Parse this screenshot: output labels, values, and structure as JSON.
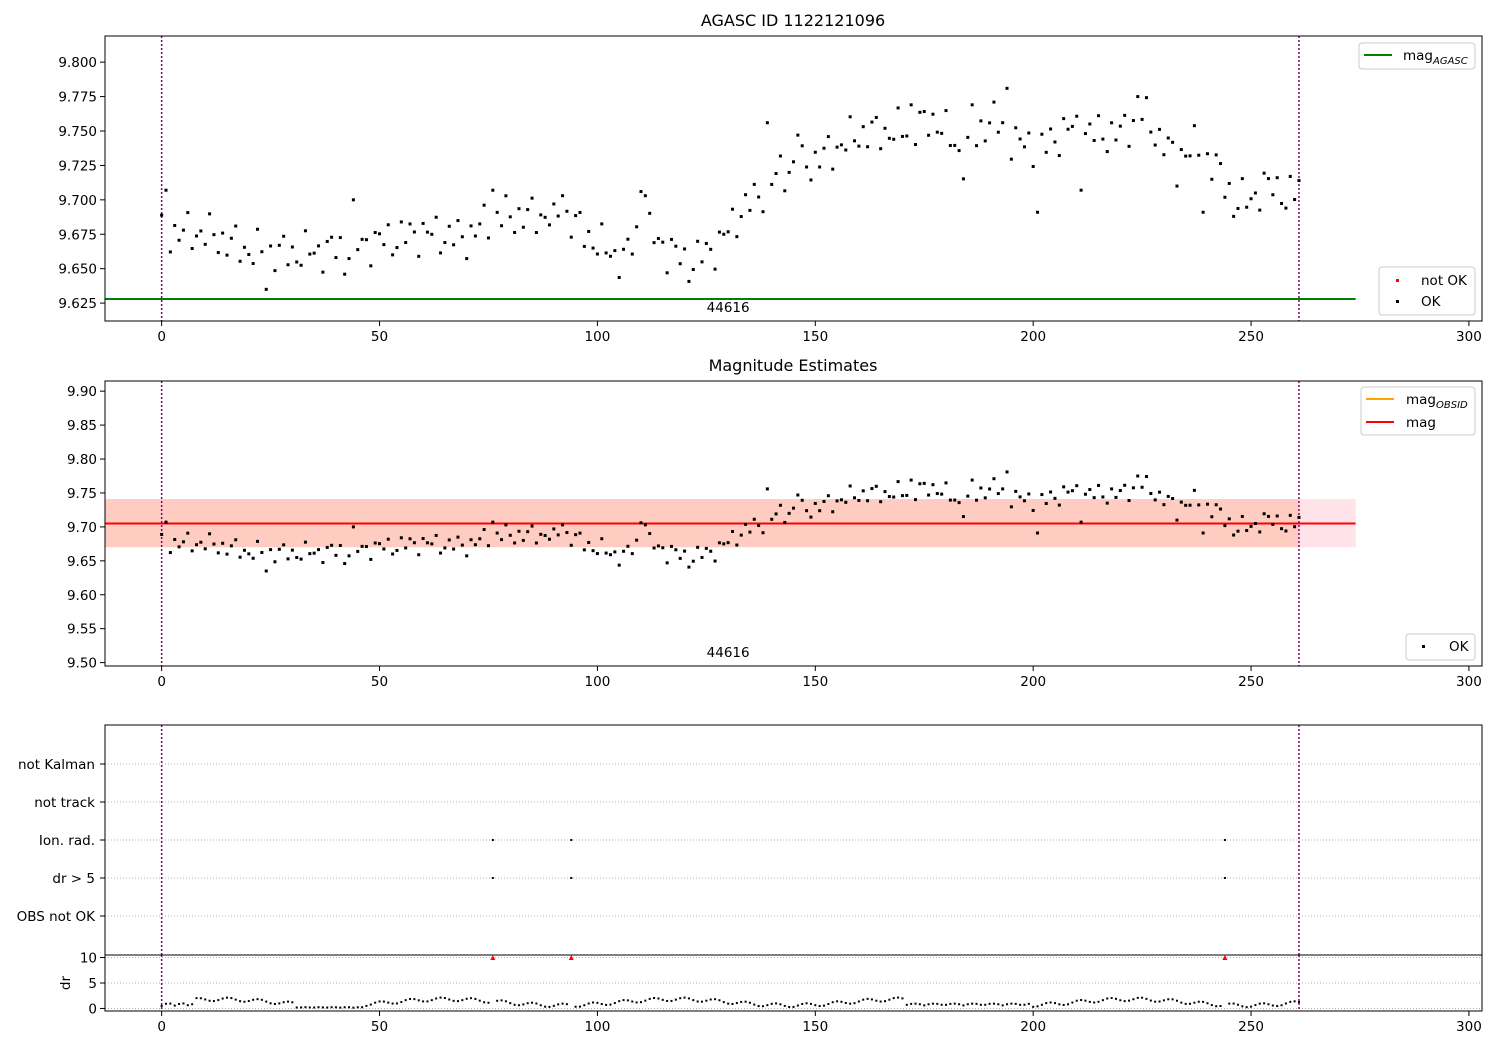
{
  "chart_data": [
    {
      "type": "scatter",
      "title": "AGASC ID 1122121096",
      "xlim": [
        -13,
        303
      ],
      "ylim": [
        9.612,
        9.819
      ],
      "x_ticks": [
        0,
        50,
        100,
        150,
        200,
        250,
        300
      ],
      "y_ticks": [
        9.625,
        9.65,
        9.675,
        9.7,
        9.725,
        9.75,
        9.775,
        9.8
      ],
      "x_tick_labels": [
        "0",
        "50",
        "100",
        "150",
        "200",
        "250",
        "300"
      ],
      "y_tick_labels": [
        "9.625",
        "9.650",
        "9.675",
        "9.700",
        "9.725",
        "9.750",
        "9.775",
        "9.800"
      ],
      "obsid_boundaries": [
        0,
        261
      ],
      "obsid_label": "44616",
      "obsid_label_x": 130,
      "mag_agasc": 9.628,
      "line_x_range": [
        -13,
        274
      ],
      "series_ok_name": "OK",
      "series_not_ok_name": "not OK",
      "legend_upper": {
        "base": "mag",
        "sub": "AGASC"
      },
      "legend_upper_position": "upper right",
      "legend_lower_position": "lower right",
      "grid": false
    },
    {
      "type": "scatter",
      "title": "Magnitude Estimates",
      "xlim": [
        -13,
        303
      ],
      "ylim": [
        9.495,
        9.915
      ],
      "x_ticks": [
        0,
        50,
        100,
        150,
        200,
        250,
        300
      ],
      "y_ticks": [
        9.5,
        9.55,
        9.6,
        9.65,
        9.7,
        9.75,
        9.8,
        9.85,
        9.9
      ],
      "x_tick_labels": [
        "0",
        "50",
        "100",
        "150",
        "200",
        "250",
        "300"
      ],
      "y_tick_labels": [
        "9.50",
        "9.55",
        "9.60",
        "9.65",
        "9.70",
        "9.75",
        "9.80",
        "9.85",
        "9.90"
      ],
      "obsid_boundaries": [
        0,
        261
      ],
      "obsid_label": "44616",
      "obsid_label_x": 130,
      "mag": 9.705,
      "mag_obsid": 9.705,
      "band_outer": [
        9.67,
        9.741
      ],
      "band_inner": [
        9.67,
        9.741
      ],
      "band_x_range": [
        -13,
        274
      ],
      "inner_band_x_range": [
        -13,
        261
      ],
      "series_ok_name": "OK",
      "legend_upper": [
        {
          "base": "mag",
          "sub": "OBSID",
          "color": "#ffa500"
        },
        {
          "base": "mag",
          "sub": "",
          "color": "#ff0000"
        }
      ],
      "legend_upper_position": "upper right",
      "legend_lower_position": "lower right",
      "grid": false
    },
    {
      "type": "scatter",
      "title": "",
      "xlim": [
        -13,
        303
      ],
      "flag_rows": [
        "not Kalman",
        "not track",
        "Ion. rad.",
        "dr > 5",
        "OBS not OK"
      ],
      "flag_points": [
        {
          "x": 76,
          "flags": [
            "Ion. rad.",
            "dr > 5"
          ]
        },
        {
          "x": 94,
          "flags": [
            "Ion. rad.",
            "dr > 5"
          ]
        },
        {
          "x": 244,
          "flags": [
            "Ion. rad.",
            "dr > 5"
          ]
        }
      ],
      "obsid_boundaries": [
        0,
        261
      ],
      "grid": true
    },
    {
      "type": "scatter",
      "title": "",
      "ylabel": "dr",
      "xlim": [
        -13,
        303
      ],
      "ylim": [
        -0.5,
        10.5
      ],
      "x_ticks": [
        0,
        50,
        100,
        150,
        200,
        250,
        300
      ],
      "y_ticks": [
        0,
        5,
        10
      ],
      "x_tick_labels": [
        "0",
        "50",
        "100",
        "150",
        "200",
        "250",
        "300"
      ],
      "y_tick_labels": [
        "0",
        "5",
        "10"
      ],
      "dr_ceiling": 10,
      "dr_clipped_x": [
        76,
        94,
        244
      ],
      "obsid_boundaries": [
        0,
        261
      ],
      "grid": true
    }
  ],
  "colors": {
    "ok": "#000000",
    "not_ok": "#ff0000",
    "agasc_line": "#008000",
    "mag_line": "#ff0000",
    "mag_obsid_line": "#ffa500",
    "band_outer": "#ffc0cb",
    "band_inner": "#ffa07a",
    "boundary": "#800080"
  }
}
